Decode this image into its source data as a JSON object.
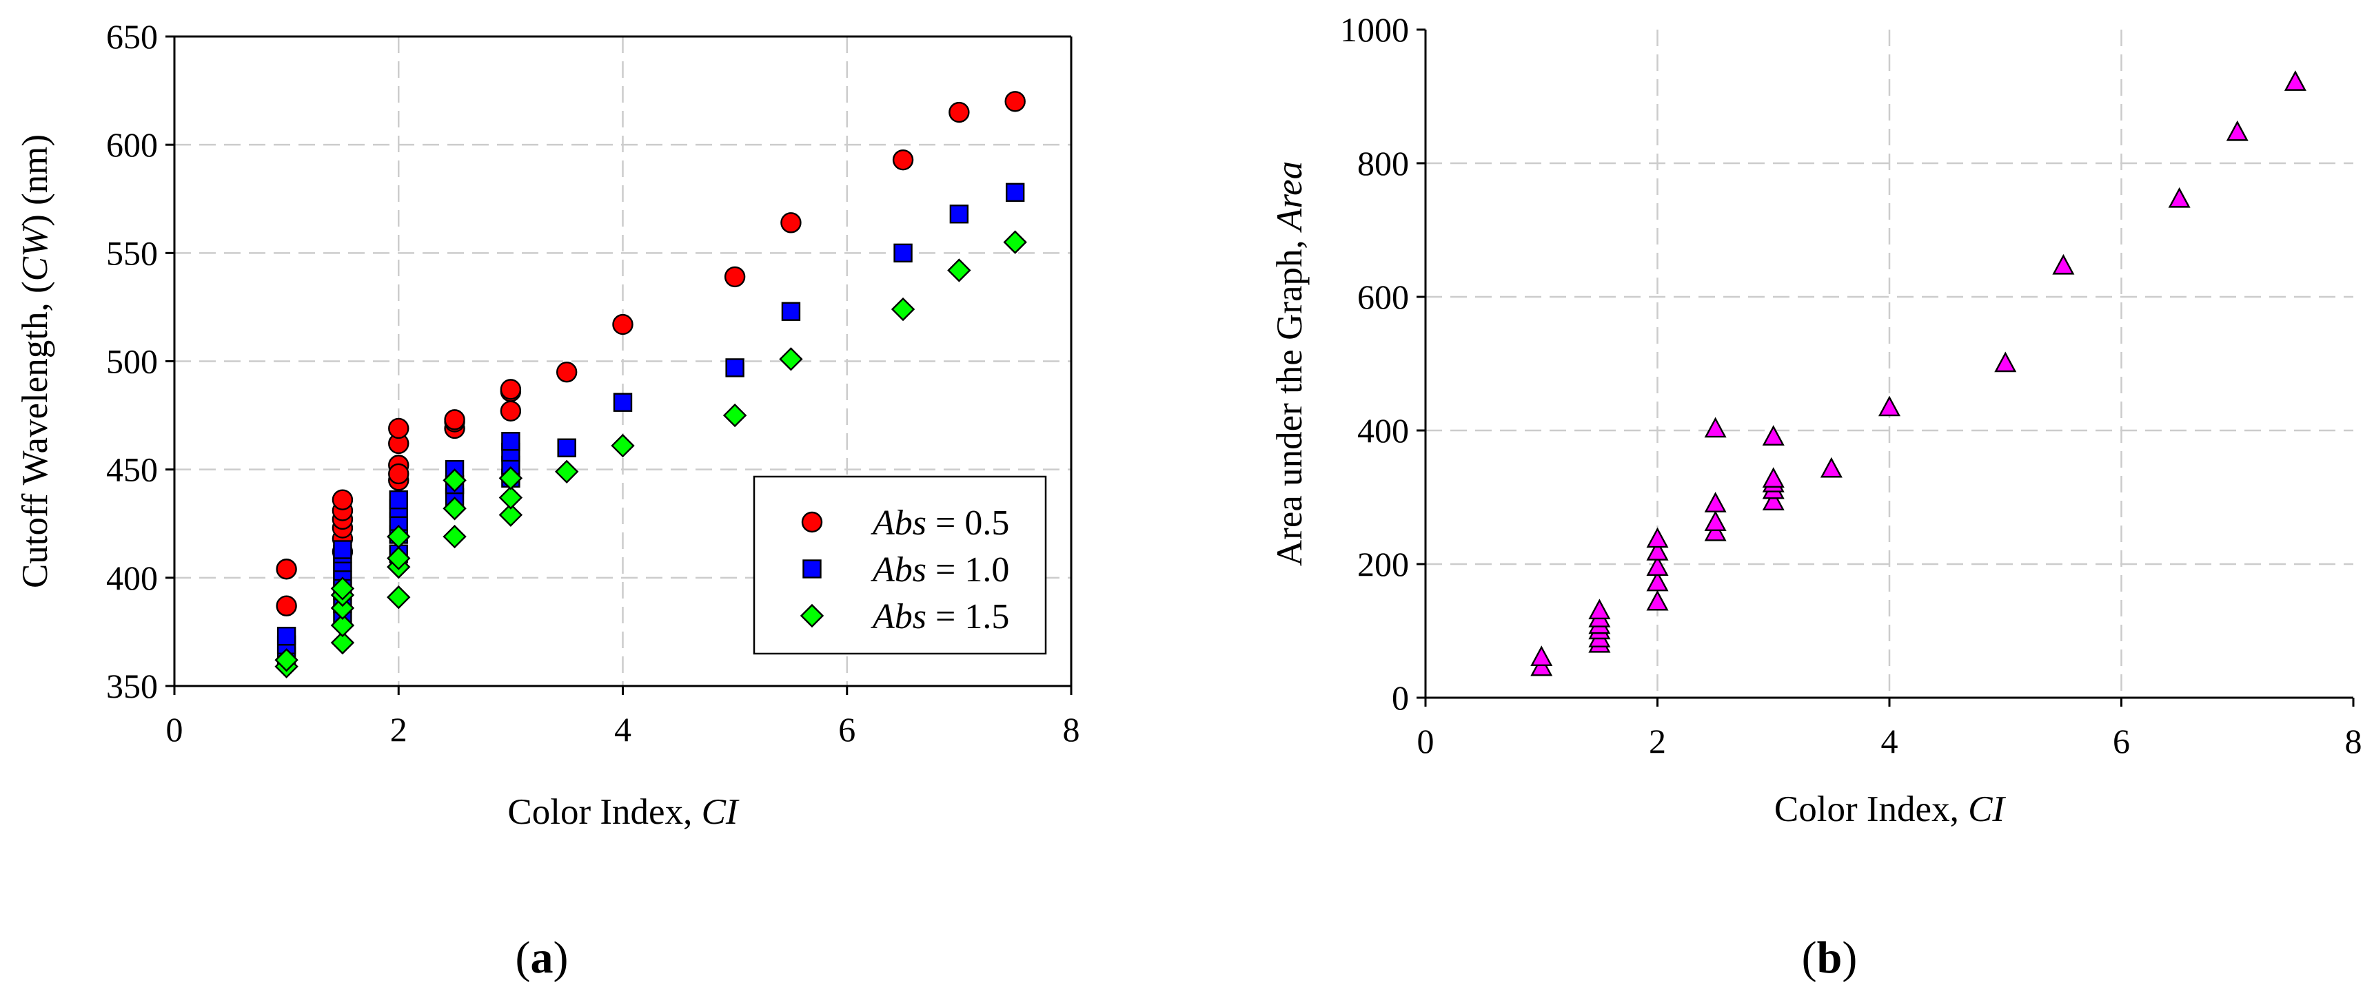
{
  "figure": {
    "panel_a_label": "(a)",
    "panel_a_letter": "a",
    "panel_b_label": "(b)",
    "panel_b_letter": "b"
  },
  "chart_data": [
    {
      "type": "scatter",
      "panel": "(a)",
      "title": "",
      "xlabel": "Color Index, CI",
      "xlabel_parts": [
        "Color Index, ",
        "CI"
      ],
      "ylabel": "Cutoff Wavelength, (CW) (nm)",
      "ylabel_parts": [
        "Cutoff Wavelength, (",
        "CW",
        ") (nm)"
      ],
      "xlim": [
        0,
        8
      ],
      "ylim": [
        350,
        650
      ],
      "xticks": [
        0,
        2,
        4,
        6,
        8
      ],
      "yticks": [
        350,
        400,
        450,
        500,
        550,
        600,
        650
      ],
      "grid": true,
      "legend_position": "right",
      "series": [
        {
          "name": "Abs = 0.5",
          "legend_italic": "Abs",
          "legend_rest": " = 0.5",
          "marker": "circle",
          "color": "#ff0000",
          "x": [
            1,
            1,
            1.5,
            1.5,
            1.5,
            1.5,
            1.5,
            1.5,
            2,
            2,
            2,
            2,
            2,
            2.5,
            2.5,
            2.5,
            3,
            3,
            3,
            3.5,
            4,
            5,
            5.5,
            6.5,
            7,
            7.5
          ],
          "y": [
            387,
            404,
            412,
            418,
            423,
            427,
            431,
            436,
            445,
            452,
            462,
            469,
            448,
            469,
            472,
            473,
            477,
            486,
            487,
            495,
            517,
            539,
            564,
            593,
            615,
            620
          ]
        },
        {
          "name": "Abs = 1.0",
          "legend_italic": "Abs",
          "legend_rest": " = 1.0",
          "marker": "square",
          "color": "#0000ff",
          "x": [
            1,
            1,
            1,
            1.5,
            1.5,
            1.5,
            1.5,
            1.5,
            1.5,
            1.5,
            1.5,
            2,
            2,
            2,
            2,
            2,
            2.5,
            2.5,
            2.5,
            3,
            3,
            3,
            3,
            3.5,
            4,
            5,
            5.5,
            6.5,
            7,
            7.5
          ],
          "y": [
            364,
            369,
            373,
            383,
            388,
            394,
            399,
            403,
            407,
            411,
            413,
            411,
            420,
            426,
            432,
            436,
            437,
            443,
            450,
            446,
            452,
            458,
            463,
            460,
            481,
            497,
            523,
            550,
            568,
            578
          ]
        },
        {
          "name": "Abs = 1.5",
          "legend_italic": "Abs",
          "legend_rest": " = 1.5",
          "marker": "diamond",
          "color": "#00ff00",
          "x": [
            1,
            1,
            1.5,
            1.5,
            1.5,
            1.5,
            1.5,
            2,
            2,
            2,
            2,
            2.5,
            2.5,
            2.5,
            3,
            3,
            3,
            3.5,
            4,
            5,
            5.5,
            6.5,
            7,
            7.5
          ],
          "y": [
            359,
            362,
            370,
            378,
            386,
            392,
            395,
            391,
            405,
            409,
            419,
            419,
            432,
            445,
            429,
            437,
            446,
            449,
            461,
            475,
            501,
            524,
            542,
            555
          ]
        }
      ]
    },
    {
      "type": "scatter",
      "panel": "(b)",
      "title": "",
      "xlabel": "Color Index, CI",
      "xlabel_parts": [
        "Color Index, ",
        "CI"
      ],
      "ylabel": "Area under the Graph, Area",
      "ylabel_parts": [
        "Area under the Graph, ",
        "Area"
      ],
      "xlim": [
        0,
        8
      ],
      "ylim": [
        0,
        1000
      ],
      "xticks": [
        0,
        2,
        4,
        6,
        8
      ],
      "yticks": [
        0,
        200,
        400,
        600,
        800,
        1000
      ],
      "grid": true,
      "series": [
        {
          "name": "Area",
          "marker": "triangle",
          "color": "#ff00ff",
          "x": [
            1,
            1,
            1.5,
            1.5,
            1.5,
            1.5,
            1.5,
            1.5,
            2,
            2,
            2,
            2,
            2,
            2.5,
            2.5,
            2.5,
            2.5,
            3,
            3,
            3,
            3,
            3,
            3.5,
            4,
            5,
            5.5,
            6.5,
            7,
            7.5
          ],
          "y": [
            45,
            60,
            80,
            88,
            100,
            108,
            118,
            130,
            143,
            172,
            195,
            218,
            237,
            247,
            262,
            290,
            402,
            293,
            310,
            320,
            327,
            390,
            342,
            434,
            500,
            646,
            746,
            846,
            921
          ]
        }
      ]
    }
  ]
}
